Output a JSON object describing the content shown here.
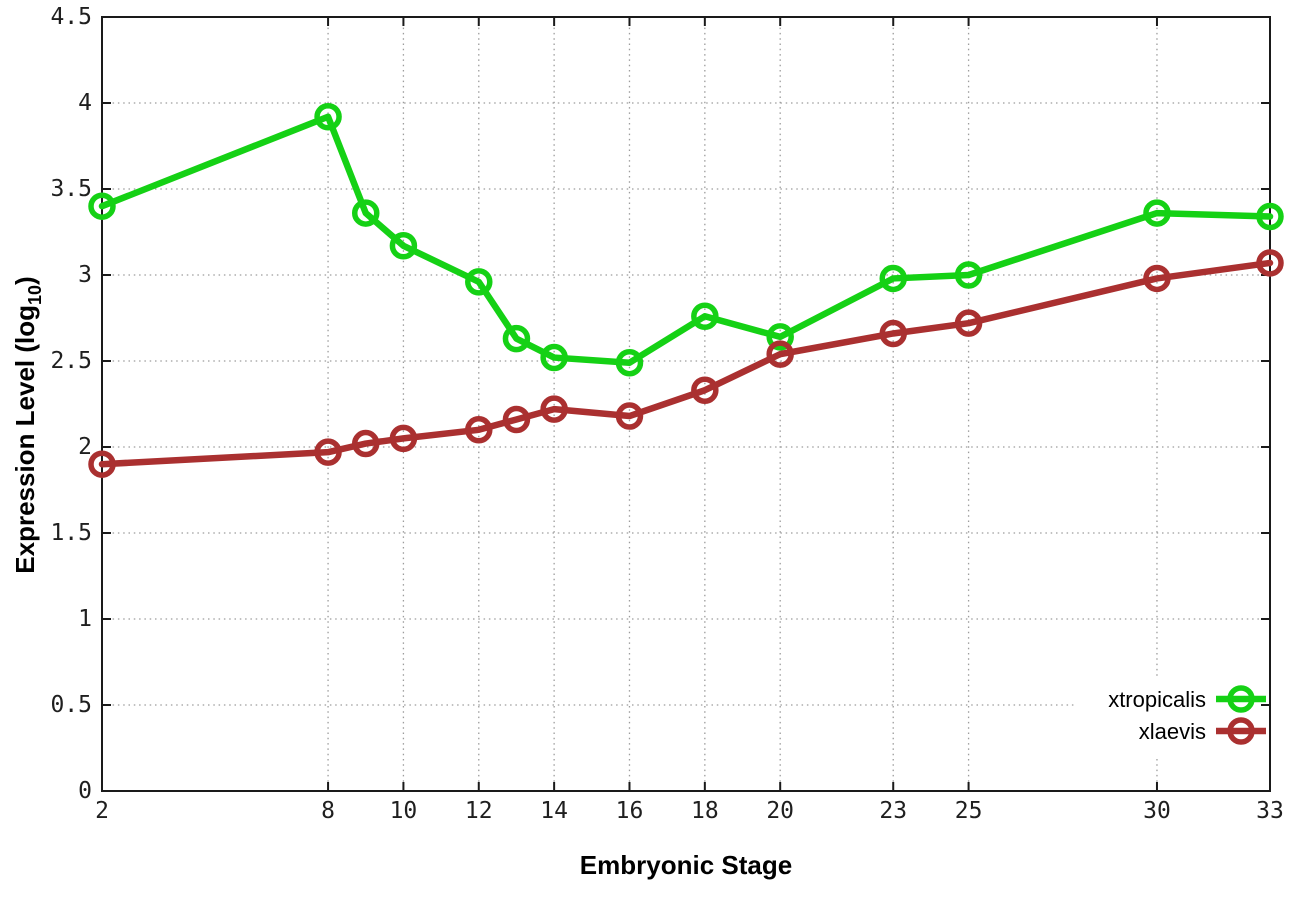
{
  "chart_data": {
    "type": "line",
    "title": "",
    "xlabel": "Embryonic Stage",
    "ylabel": {
      "prefix": "Expression Level (log",
      "sub": "10",
      "suffix": ")"
    },
    "xlim": [
      2,
      33
    ],
    "ylim": [
      0,
      4.5
    ],
    "grid": true,
    "legend_position": "bottom-right",
    "x_ticks": {
      "values": [
        2,
        8,
        10,
        12,
        14,
        16,
        18,
        20,
        23,
        25,
        30,
        33
      ],
      "labels": [
        "2",
        "8",
        "10",
        "12",
        "14",
        "16",
        "18",
        "20",
        "23",
        "25",
        "30",
        "33"
      ]
    },
    "y_ticks": {
      "values": [
        0,
        0.5,
        1,
        1.5,
        2,
        2.5,
        3,
        3.5,
        4,
        4.5
      ],
      "labels": [
        "0",
        "0.5",
        "1",
        "1.5",
        "2",
        "2.5",
        "3",
        "3.5",
        "4",
        "4.5"
      ]
    },
    "x": [
      2,
      8,
      9,
      10,
      12,
      13,
      14,
      16,
      18,
      20,
      23,
      25,
      30,
      33
    ],
    "series": [
      {
        "name": "xtropicalis",
        "color": "#15d115",
        "marker": "open-circle",
        "values": [
          3.4,
          3.92,
          3.36,
          3.17,
          2.96,
          2.63,
          2.52,
          2.49,
          2.76,
          2.64,
          2.98,
          3.0,
          3.36,
          3.34
        ]
      },
      {
        "name": "xlaevis",
        "color": "#aa3030",
        "marker": "open-circle",
        "values": [
          1.9,
          1.97,
          2.02,
          2.05,
          2.1,
          2.16,
          2.22,
          2.18,
          2.33,
          2.54,
          2.66,
          2.72,
          2.98,
          3.07
        ]
      }
    ],
    "style": {
      "background": "#ffffff",
      "border_color": "#1a1a1a",
      "grid_color": "#9c9c9c",
      "tick_label_color": "#1f1f1f",
      "text_color": "#000000"
    }
  }
}
